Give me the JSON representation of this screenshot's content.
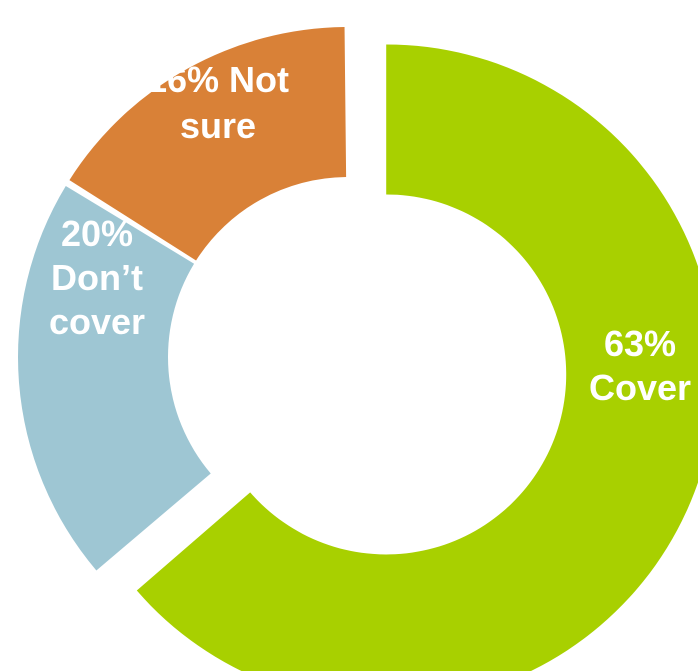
{
  "chart_data": {
    "type": "pie",
    "title": "",
    "categories": [
      "Cover",
      "Don’t cover",
      "Not sure"
    ],
    "values": [
      63,
      20,
      16
    ],
    "labels": [
      [
        "63%",
        "Cover"
      ],
      [
        "20%",
        "Don’t",
        "cover"
      ],
      [
        "16% Not",
        "sure"
      ]
    ],
    "colors": [
      "#a8d000",
      "#9ec6d3",
      "#d98137"
    ],
    "label_color": "#ffffff",
    "style": "exploded-donut",
    "exploded_slices": [
      "Cover"
    ]
  }
}
